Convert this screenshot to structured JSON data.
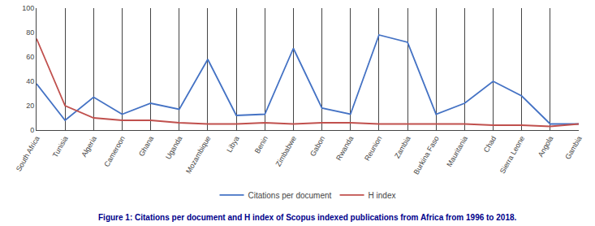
{
  "chart_data": {
    "type": "line",
    "categories": [
      "South Africa",
      "Tunisia",
      "Algeria",
      "Cameroon",
      "Ghana",
      "Uganda",
      "Mozambique",
      "Libya",
      "Benin",
      "Zimbabwe",
      "Gabon",
      "Rwanda",
      "Reunion",
      "Zambia",
      "Burkina Faso",
      "Mauritania",
      "Chad",
      "Sierra Leone",
      "Angola",
      "Gambia"
    ],
    "series": [
      {
        "name": "Citations per document",
        "color": "#4472C4",
        "values": [
          38,
          8,
          27,
          13,
          22,
          17,
          58,
          12,
          13,
          67,
          18,
          13,
          78,
          72,
          13,
          22,
          40,
          28,
          5,
          5
        ]
      },
      {
        "name": "H index",
        "color": "#C0504D",
        "values": [
          75,
          20,
          10,
          8,
          8,
          6,
          5,
          5,
          6,
          5,
          6,
          6,
          5,
          5,
          5,
          5,
          4,
          4,
          3,
          5
        ]
      }
    ],
    "ylim": [
      0,
      100
    ],
    "yticks": [
      0,
      20,
      40,
      60,
      80,
      100
    ],
    "grid": "x",
    "legend": "bottom",
    "annotations": [
      "Figure 1: Citations per document and H index of Scopus indexed publications from Africa from 1996 to 2018."
    ]
  }
}
